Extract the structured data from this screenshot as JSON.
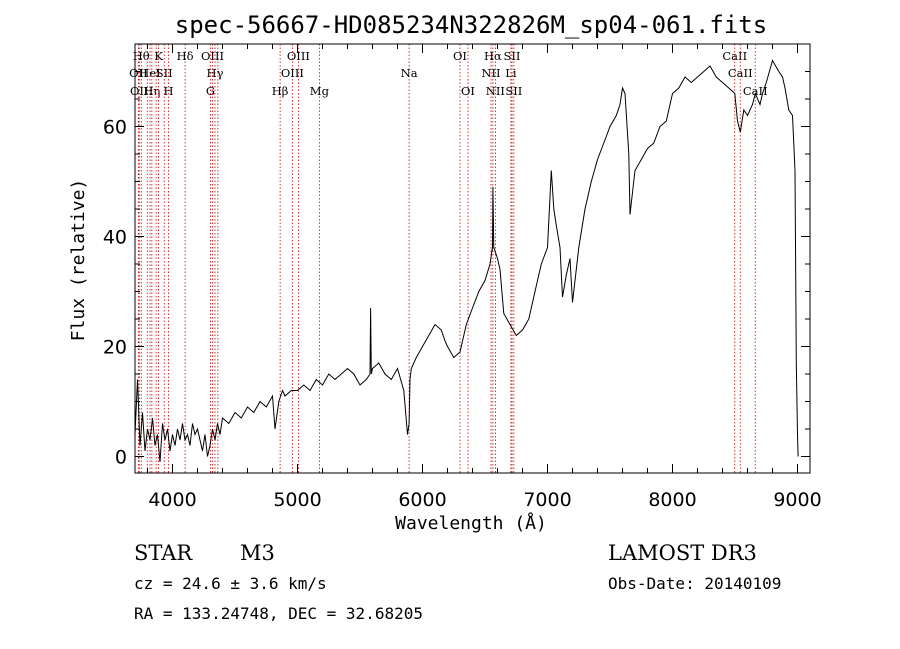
{
  "chart_data": {
    "type": "line",
    "title": "spec-56667-HD085234N322826M_sp04-061.fits",
    "xlabel": "Wavelength (Å)",
    "ylabel": "Flux (relative)",
    "xlim": [
      3700,
      9100
    ],
    "ylim": [
      -3,
      75
    ],
    "xticks": [
      4000,
      5000,
      6000,
      7000,
      8000,
      9000
    ],
    "yticks": [
      0,
      20,
      40,
      60
    ],
    "grid": false,
    "series": [
      {
        "name": "flux",
        "x": [
          3700,
          3720,
          3740,
          3760,
          3780,
          3800,
          3820,
          3840,
          3860,
          3880,
          3900,
          3920,
          3940,
          3960,
          3980,
          4000,
          4020,
          4040,
          4060,
          4080,
          4100,
          4120,
          4140,
          4160,
          4180,
          4200,
          4220,
          4240,
          4260,
          4280,
          4300,
          4320,
          4340,
          4360,
          4380,
          4400,
          4450,
          4500,
          4550,
          4600,
          4650,
          4700,
          4750,
          4800,
          4820,
          4850,
          4880,
          4900,
          4950,
          5000,
          5050,
          5100,
          5150,
          5200,
          5250,
          5300,
          5350,
          5400,
          5450,
          5500,
          5550,
          5580,
          5585,
          5590,
          5600,
          5650,
          5700,
          5750,
          5800,
          5850,
          5880,
          5893,
          5900,
          5910,
          5950,
          6000,
          6050,
          6100,
          6150,
          6180,
          6200,
          6250,
          6300,
          6350,
          6400,
          6450,
          6500,
          6540,
          6560,
          6563,
          6570,
          6600,
          6620,
          6650,
          6700,
          6750,
          6800,
          6850,
          6900,
          6950,
          7000,
          7030,
          7050,
          7070,
          7100,
          7120,
          7150,
          7180,
          7200,
          7250,
          7300,
          7350,
          7400,
          7450,
          7500,
          7550,
          7580,
          7600,
          7620,
          7650,
          7660,
          7680,
          7700,
          7750,
          7800,
          7850,
          7900,
          7950,
          8000,
          8050,
          8100,
          8150,
          8200,
          8250,
          8300,
          8350,
          8400,
          8450,
          8498,
          8520,
          8542,
          8570,
          8600,
          8640,
          8662,
          8700,
          8720,
          8750,
          8800,
          8850,
          8880,
          8900,
          8930,
          8960,
          8980,
          8990,
          9000,
          9005
        ],
        "y": [
          4,
          14,
          2,
          8,
          1,
          5,
          3,
          7,
          2,
          4,
          -1,
          6,
          3,
          5,
          1,
          4,
          2,
          5,
          3,
          6,
          3,
          4,
          2,
          6,
          4,
          5,
          3,
          1,
          4,
          0,
          2,
          5,
          3,
          6,
          4,
          7,
          6,
          8,
          7,
          9,
          8,
          10,
          9,
          11,
          5,
          10,
          12,
          11,
          12,
          12,
          13,
          12,
          14,
          13,
          15,
          14,
          15,
          16,
          15,
          13,
          14,
          15,
          27,
          15,
          16,
          17,
          15,
          14,
          16,
          12,
          4,
          6,
          14,
          16,
          18,
          20,
          22,
          24,
          23,
          21,
          20,
          18,
          19,
          24,
          27,
          30,
          32,
          35,
          38,
          49,
          38,
          36,
          34,
          26,
          24,
          22,
          23,
          25,
          30,
          35,
          38,
          52,
          45,
          42,
          38,
          29,
          33,
          36,
          28,
          38,
          45,
          50,
          54,
          57,
          60,
          62,
          64,
          67,
          66,
          55,
          44,
          48,
          52,
          54,
          56,
          57,
          60,
          61,
          66,
          67,
          69,
          68,
          69,
          70,
          71,
          69,
          68,
          67,
          66,
          61,
          59,
          63,
          62,
          64,
          66,
          64,
          66,
          68,
          72,
          70,
          69,
          67,
          63,
          62,
          52,
          17,
          4,
          0
        ]
      }
    ],
    "lines": [
      {
        "wl": 3727,
        "labels": [
          "OII"
        ],
        "row": 2
      },
      {
        "wl": 3734,
        "labels": [
          "OII"
        ],
        "row": 3
      },
      {
        "wl": 3750,
        "labels": [
          "Hθ"
        ],
        "row": 1
      },
      {
        "wl": 3798,
        "labels": [],
        "row": 0
      },
      {
        "wl": 3820,
        "labels": [
          "HeI"
        ],
        "row": 2
      },
      {
        "wl": 3835,
        "labels": [
          "Hη"
        ],
        "row": 3
      },
      {
        "wl": 3869,
        "labels": [],
        "row": 0
      },
      {
        "wl": 3889,
        "labels": [
          "K"
        ],
        "row": 1
      },
      {
        "wl": 3934,
        "labels": [
          "SII"
        ],
        "row": 2
      },
      {
        "wl": 3968,
        "labels": [
          "H"
        ],
        "row": 3
      },
      {
        "wl": 4101,
        "labels": [
          "Hδ"
        ],
        "row": 1
      },
      {
        "wl": 4304,
        "labels": [
          "G"
        ],
        "row": 3
      },
      {
        "wl": 4320,
        "labels": [
          "OIII"
        ],
        "row": 1
      },
      {
        "wl": 4340,
        "labels": [
          "Hγ"
        ],
        "row": 2
      },
      {
        "wl": 4363,
        "labels": [],
        "row": 0
      },
      {
        "wl": 4861,
        "labels": [
          "Hβ"
        ],
        "row": 3
      },
      {
        "wl": 4959,
        "labels": [
          "OIII"
        ],
        "row": 2
      },
      {
        "wl": 5007,
        "labels": [
          "OIII"
        ],
        "row": 1
      },
      {
        "wl": 5175,
        "labels": [
          "Mg"
        ],
        "row": 3
      },
      {
        "wl": 5893,
        "labels": [
          "Na"
        ],
        "row": 2
      },
      {
        "wl": 6300,
        "labels": [
          "OI"
        ],
        "row": 1
      },
      {
        "wl": 6364,
        "labels": [
          "OI"
        ],
        "row": 3
      },
      {
        "wl": 6548,
        "labels": [
          "NII"
        ],
        "row": 2
      },
      {
        "wl": 6563,
        "labels": [
          "Hα"
        ],
        "row": 1
      },
      {
        "wl": 6583,
        "labels": [
          "NII"
        ],
        "row": 3
      },
      {
        "wl": 6707,
        "labels": [
          "Li"
        ],
        "row": 2
      },
      {
        "wl": 6716,
        "labels": [
          "SII"
        ],
        "row": 1
      },
      {
        "wl": 6731,
        "labels": [
          "SII"
        ],
        "row": 3
      },
      {
        "wl": 8498,
        "labels": [
          "CaII"
        ],
        "row": 1
      },
      {
        "wl": 8542,
        "labels": [
          "CaII"
        ],
        "row": 2
      },
      {
        "wl": 8662,
        "labels": [
          "CaII"
        ],
        "row": 3
      }
    ]
  },
  "info": {
    "class": "STAR",
    "subclass": "M3",
    "survey": "LAMOST DR3",
    "cz": "cz = 24.6 ± 3.6 km/s",
    "obs_date": "Obs-Date: 20140109",
    "radec": "RA = 133.24748, DEC =  32.68205"
  },
  "colors": {
    "line_marker": "#cc0000",
    "spectrum": "#000000",
    "axes": "#000000"
  }
}
